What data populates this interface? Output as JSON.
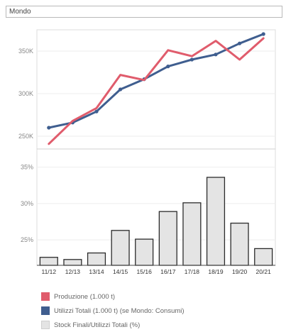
{
  "filter": {
    "region_value": "Mondo"
  },
  "colors": {
    "produzione": "#e05c6c",
    "utilizzi": "#3f5e8f",
    "stock_fill": "#e4e4e4",
    "stock_stroke": "#2b2b2b",
    "grid": "#eeeeee",
    "axis_text": "#888888"
  },
  "chart_data": [
    {
      "type": "line",
      "title": "",
      "categories": [
        "11/12",
        "12/13",
        "13/14",
        "14/15",
        "15/16",
        "16/17",
        "17/18",
        "18/19",
        "19/20",
        "20/21"
      ],
      "y_ticks": [
        "250K",
        "300K",
        "350K"
      ],
      "ylim": [
        235000,
        375000
      ],
      "grid": true,
      "series": [
        {
          "name": "Produzione (1.000 t)",
          "key": "produzione",
          "values": [
            241000,
            268000,
            283000,
            322000,
            316000,
            351000,
            344000,
            362000,
            340000,
            365000
          ]
        },
        {
          "name": "Utilizzi Totali (1.000 t) (se Mondo: Consumi)",
          "key": "utilizzi",
          "values": [
            260000,
            266000,
            279000,
            305000,
            317000,
            332000,
            340000,
            346000,
            359000,
            370000
          ]
        }
      ]
    },
    {
      "type": "bar",
      "title": "",
      "categories": [
        "11/12",
        "12/13",
        "13/14",
        "14/15",
        "15/16",
        "16/17",
        "17/18",
        "18/19",
        "19/20",
        "20/21"
      ],
      "y_ticks": [
        "25%",
        "30%",
        "35%"
      ],
      "ylim": [
        21.5,
        37.5
      ],
      "grid": true,
      "series": [
        {
          "name": "Stock Finali/Utilizzi Totali (%)",
          "key": "stock",
          "values": [
            22.6,
            22.3,
            23.2,
            26.3,
            25.1,
            28.9,
            30.1,
            33.6,
            27.3,
            23.8
          ]
        }
      ]
    }
  ],
  "legend": [
    {
      "label": "Produzione (1.000 t)",
      "key": "produzione"
    },
    {
      "label": "Utilizzi Totali (1.000 t) (se Mondo: Consumi)",
      "key": "utilizzi"
    },
    {
      "label": "Stock Finali/Utilizzi Totali (%)",
      "key": "stock_fill"
    }
  ]
}
